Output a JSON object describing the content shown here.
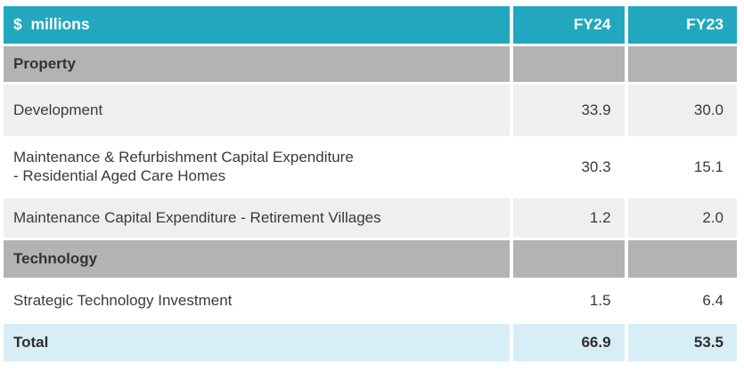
{
  "colors": {
    "teal": "#22A8BE",
    "section-gray": "#B3B3B3",
    "row-light": "#EFEFEF",
    "total-blue": "#D7EEF7",
    "text-dark": "#3A3A3A",
    "header-text": "#FFFFFF"
  },
  "table": {
    "header": {
      "label": "$  millions",
      "fy24": "FY24",
      "fy23": "FY23"
    },
    "rows": [
      {
        "type": "section",
        "label": "Property",
        "fy24": "",
        "fy23": ""
      },
      {
        "type": "light",
        "label": "Development",
        "fy24": "33.9",
        "fy23": "30.0"
      },
      {
        "type": "white",
        "label": "Maintenance & Refurbishment Capital Expenditure",
        "label2": "- Residential Aged Care Homes",
        "fy24": "30.3",
        "fy23": "15.1"
      },
      {
        "type": "light",
        "label": "Maintenance Capital Expenditure - Retirement Villages",
        "fy24": "1.2",
        "fy23": "2.0"
      },
      {
        "type": "section",
        "label": "Technology",
        "fy24": "",
        "fy23": ""
      },
      {
        "type": "white",
        "label": "Strategic Technology Investment",
        "fy24": "1.5",
        "fy23": "6.4"
      },
      {
        "type": "total",
        "label": "Total",
        "fy24": "66.9",
        "fy23": "53.5"
      }
    ]
  }
}
